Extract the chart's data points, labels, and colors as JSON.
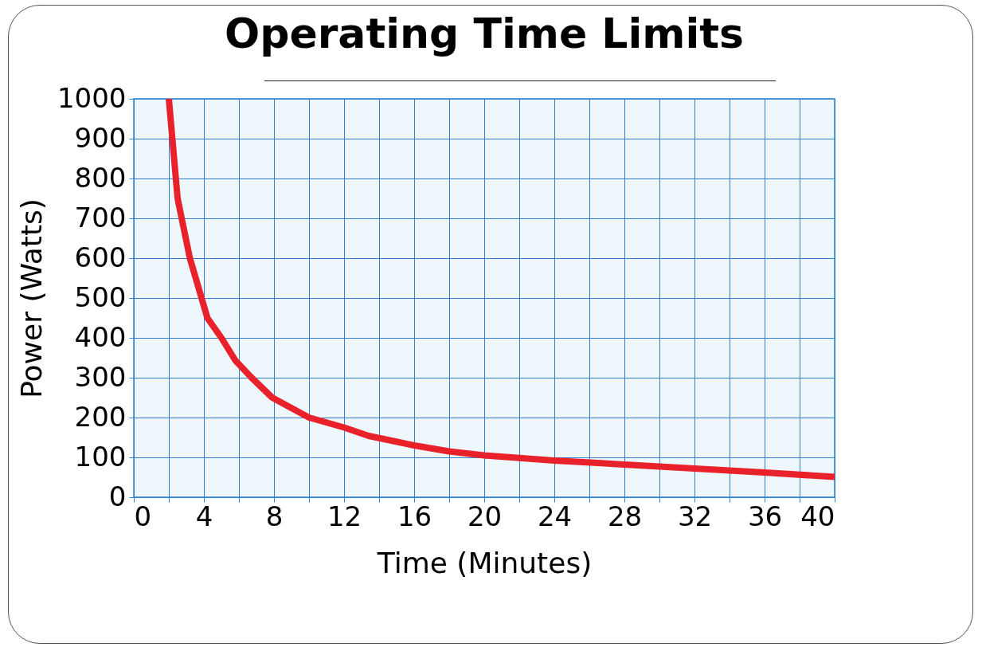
{
  "chart_data": {
    "type": "line",
    "title": "Operating Time Limits",
    "xlabel": "Time (Minutes)",
    "ylabel": "Power (Watts)",
    "x": [
      2,
      2.5,
      3.2,
      4.2,
      5,
      5.8,
      6.7,
      7.9,
      10,
      12,
      13.4,
      16,
      18,
      20,
      24,
      28,
      32,
      36,
      40
    ],
    "series": [
      {
        "color": "#e8212a",
        "values": [
          1000,
          750,
          600,
          450,
          400,
          343,
          301,
          250,
          200,
          175,
          154,
          130,
          115,
          105,
          92,
          82,
          72,
          62,
          51
        ]
      }
    ],
    "xlim": [
      0,
      40
    ],
    "ylim": [
      0,
      1000
    ],
    "xticks": [
      0,
      {
        "value": 2,
        "label": null
      },
      4,
      {
        "value": 6,
        "label": null
      },
      8,
      {
        "value": 10,
        "label": null
      },
      12,
      {
        "value": 14,
        "label": null
      },
      16,
      {
        "value": 18,
        "label": null
      },
      20,
      {
        "value": 22,
        "label": null
      },
      24,
      {
        "value": 26,
        "label": null
      },
      28,
      {
        "value": 30,
        "label": null
      },
      32,
      {
        "value": 34,
        "label": null
      },
      36,
      {
        "value": 38,
        "label": null
      },
      40
    ],
    "yticks": [
      0,
      100,
      200,
      300,
      400,
      500,
      600,
      700,
      800,
      900,
      1000
    ],
    "grid": true,
    "line_style": "solid",
    "marker": "none"
  }
}
